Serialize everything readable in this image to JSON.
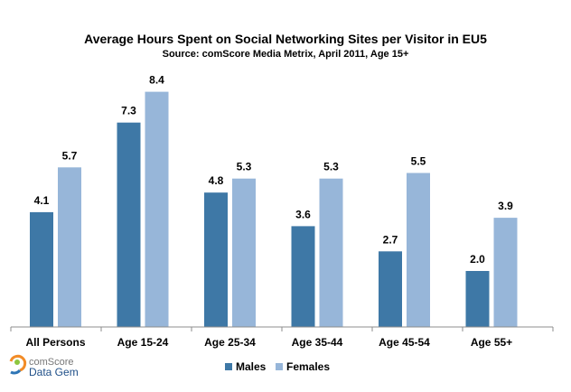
{
  "chart_data": {
    "type": "bar",
    "title": "Average Hours Spent on Social Networking Sites per Visitor in EU5",
    "subtitle": "Source: comScore Media Metrix, April 2011, Age 15+",
    "categories": [
      "All Persons",
      "Age 15-24",
      "Age 25-34",
      "Age 35-44",
      "Age 45-54",
      "Age 55+"
    ],
    "series": [
      {
        "name": "Males",
        "color": "#3E78A6",
        "values": [
          4.1,
          7.3,
          4.8,
          3.6,
          2.7,
          2.0
        ]
      },
      {
        "name": "Females",
        "color": "#97B6D9",
        "values": [
          5.7,
          8.4,
          5.3,
          5.3,
          5.5,
          3.9
        ]
      }
    ],
    "value_labels": [
      [
        "4.1",
        "7.3",
        "4.8",
        "3.6",
        "2.7",
        "2.0"
      ],
      [
        "5.7",
        "8.4",
        "5.3",
        "5.3",
        "5.5",
        "3.9"
      ]
    ],
    "ylim": [
      0,
      9
    ],
    "grid": false,
    "legend_position": "bottom"
  },
  "branding": {
    "line1": "comScore",
    "line2": "Data Gem",
    "icon": "comscore-swirl-icon",
    "colors": [
      "#F28C28",
      "#2E75B6",
      "#8DC63F"
    ]
  },
  "axis_color": "#8C8C8C"
}
